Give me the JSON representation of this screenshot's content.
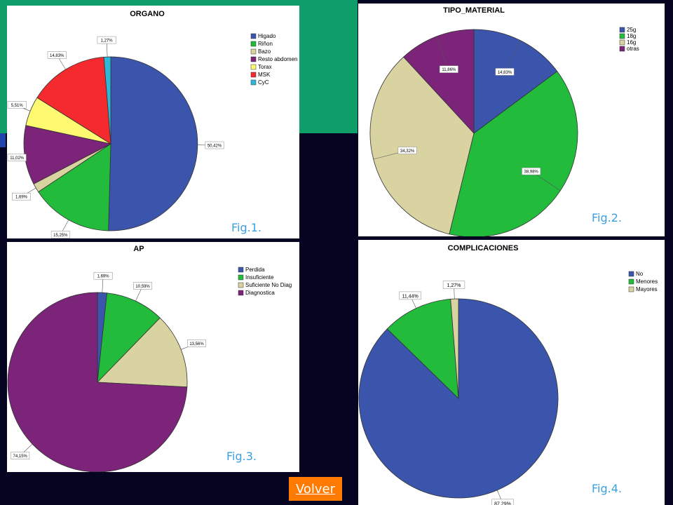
{
  "colors": {
    "blue": "#3b55ad",
    "green": "#22bb3c",
    "tan": "#d8d3a0",
    "purple": "#7b247a",
    "yellow": "#fdfa72",
    "red": "#f52a2e",
    "cyan": "#2fb7d8",
    "fig_label": "#3aa0e0",
    "button_bg": "#ff7a00"
  },
  "nav": {
    "volver_label": "Volver"
  },
  "chart_data": [
    {
      "type": "pie",
      "title": "ORGANO",
      "fig_label": "Fig.1.",
      "legend_placement": "right",
      "categories": [
        "Higado",
        "Riñon",
        "Bazo",
        "Resto abdomen",
        "Torax",
        "MSK",
        "CyC"
      ],
      "values": [
        50.42,
        15.25,
        1.69,
        11.02,
        5.51,
        14.83,
        1.27
      ],
      "labels": [
        "50,42%",
        "15,25%",
        "1,69%",
        "11,02%",
        "5,51%",
        "14,83%",
        "1,27%"
      ],
      "colors": [
        "#3b55ad",
        "#22bb3c",
        "#d8d3a0",
        "#7b247a",
        "#fdfa72",
        "#f52a2e",
        "#2fb7d8"
      ]
    },
    {
      "type": "pie",
      "title": "TIPO_MATERIAL",
      "fig_label": "Fig.2.",
      "legend_placement": "right",
      "categories": [
        "25g",
        "18g",
        "16g",
        "otras"
      ],
      "values": [
        14.83,
        38.98,
        34.32,
        11.86
      ],
      "labels": [
        "14,83%",
        "38,98%",
        "34,32%",
        "11,86%"
      ],
      "colors": [
        "#3b55ad",
        "#22bb3c",
        "#d8d3a0",
        "#7b247a"
      ]
    },
    {
      "type": "pie",
      "title": "AP",
      "fig_label": "Fig.3.",
      "legend_placement": "right",
      "categories": [
        "Perdida",
        "Insuficiente",
        "Suficiente No Diag",
        "Diagnostica"
      ],
      "values": [
        1.69,
        10.59,
        13.56,
        74.15
      ],
      "labels": [
        "1,69%",
        "10,59%",
        "13,56%",
        "74,15%"
      ],
      "colors": [
        "#3b55ad",
        "#22bb3c",
        "#d8d3a0",
        "#7b247a"
      ]
    },
    {
      "type": "pie",
      "title": "COMPLICACIONES",
      "fig_label": "Fig.4.",
      "legend_placement": "right",
      "categories": [
        "No",
        "Menores",
        "Mayores"
      ],
      "values": [
        87.29,
        11.44,
        1.27
      ],
      "labels": [
        "87,29%",
        "11,44%",
        "1,27%"
      ],
      "colors": [
        "#3b55ad",
        "#22bb3c",
        "#d8d3a0"
      ]
    }
  ]
}
